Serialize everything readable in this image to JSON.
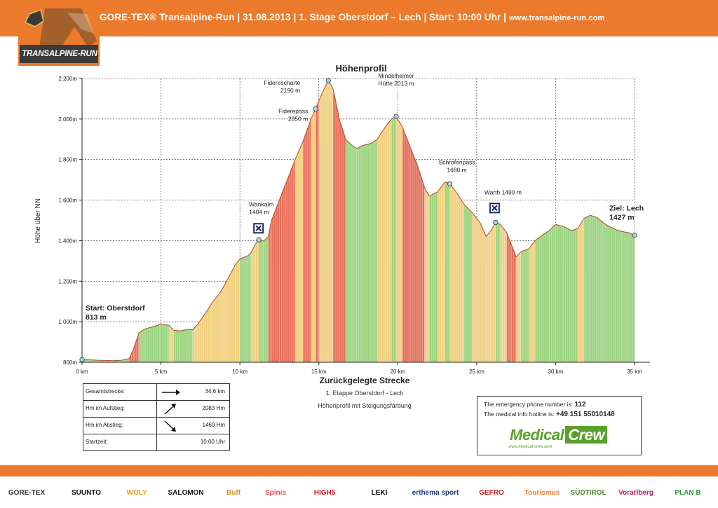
{
  "header": {
    "title": "GORE-TEX® Transalpine-Run | 31.08.2013 | 1. Stage Oberstdorf – Lech | Start: 10:00 Uhr | ",
    "url": "www.transalpine-run.com"
  },
  "logo": {
    "text": "TRANSALPINE-RUN",
    "badge": "GORE-TEX"
  },
  "chart_data": {
    "type": "area",
    "title": "Höhenprofil",
    "xlabel": "Zurückgelegte Strecke",
    "ylabel": "Höhe über NN",
    "xlim": [
      0,
      35
    ],
    "ylim": [
      800,
      2200
    ],
    "xticks": [
      0,
      5,
      10,
      15,
      20,
      25,
      30,
      35
    ],
    "xtick_labels": [
      "0 km",
      "5 km",
      "10 km",
      "15 km",
      "20 km",
      "25 km",
      "30 km",
      "35 km"
    ],
    "yticks": [
      800,
      1000,
      1200,
      1400,
      1600,
      1800,
      2000,
      2200
    ],
    "ytick_labels": [
      "800m",
      "1.000m",
      "1.200m",
      "1.400m",
      "1.600m",
      "1.800m",
      "2.000m",
      "2.200m"
    ],
    "grid": true,
    "fill_colors": {
      "steep": "#e8705a",
      "moderate": "#f0d080",
      "flat": "#9cd480"
    },
    "profile": [
      [
        0.0,
        813
      ],
      [
        0.5,
        812
      ],
      [
        1.0,
        810
      ],
      [
        1.5,
        809
      ],
      [
        2.0,
        808
      ],
      [
        2.5,
        810
      ],
      [
        3.0,
        818
      ],
      [
        3.3,
        875
      ],
      [
        3.6,
        945
      ],
      [
        4.0,
        965
      ],
      [
        4.5,
        975
      ],
      [
        5.0,
        988
      ],
      [
        5.5,
        982
      ],
      [
        5.8,
        958
      ],
      [
        6.2,
        955
      ],
      [
        6.7,
        962
      ],
      [
        7.0,
        960
      ],
      [
        7.3,
        985
      ],
      [
        7.8,
        1040
      ],
      [
        8.3,
        1100
      ],
      [
        8.8,
        1150
      ],
      [
        9.3,
        1220
      ],
      [
        9.7,
        1280
      ],
      [
        10.0,
        1310
      ],
      [
        10.5,
        1325
      ],
      [
        10.7,
        1340
      ],
      [
        11.0,
        1385
      ],
      [
        11.2,
        1404
      ],
      [
        11.5,
        1398
      ],
      [
        11.8,
        1420
      ],
      [
        12.0,
        1500
      ],
      [
        12.5,
        1600
      ],
      [
        13.0,
        1700
      ],
      [
        13.5,
        1800
      ],
      [
        14.0,
        1890
      ],
      [
        14.5,
        2000
      ],
      [
        14.8,
        2050
      ],
      [
        15.0,
        2090
      ],
      [
        15.4,
        2160
      ],
      [
        15.6,
        2190
      ],
      [
        15.9,
        2150
      ],
      [
        16.3,
        2000
      ],
      [
        16.7,
        1900
      ],
      [
        17.1,
        1870
      ],
      [
        17.4,
        1855
      ],
      [
        17.8,
        1870
      ],
      [
        18.3,
        1880
      ],
      [
        18.7,
        1900
      ],
      [
        19.2,
        1960
      ],
      [
        19.6,
        2000
      ],
      [
        19.9,
        2013
      ],
      [
        20.3,
        1960
      ],
      [
        20.8,
        1860
      ],
      [
        21.3,
        1760
      ],
      [
        21.7,
        1660
      ],
      [
        22.0,
        1620
      ],
      [
        22.5,
        1640
      ],
      [
        23.0,
        1690
      ],
      [
        23.3,
        1680
      ],
      [
        23.7,
        1640
      ],
      [
        24.2,
        1580
      ],
      [
        24.7,
        1540
      ],
      [
        25.2,
        1490
      ],
      [
        25.6,
        1420
      ],
      [
        25.9,
        1450
      ],
      [
        26.2,
        1490
      ],
      [
        26.5,
        1480
      ],
      [
        26.9,
        1440
      ],
      [
        27.2,
        1380
      ],
      [
        27.5,
        1320
      ],
      [
        27.8,
        1345
      ],
      [
        28.3,
        1360
      ],
      [
        28.7,
        1400
      ],
      [
        29.2,
        1430
      ],
      [
        29.6,
        1450
      ],
      [
        30.0,
        1480
      ],
      [
        30.5,
        1470
      ],
      [
        31.0,
        1450
      ],
      [
        31.4,
        1460
      ],
      [
        31.8,
        1510
      ],
      [
        32.2,
        1525
      ],
      [
        32.6,
        1515
      ],
      [
        33.0,
        1490
      ],
      [
        33.4,
        1470
      ],
      [
        33.8,
        1455
      ],
      [
        34.2,
        1445
      ],
      [
        34.6,
        1440
      ],
      [
        35.0,
        1427
      ]
    ],
    "annotations": [
      {
        "label": "Start: Oberstdorf",
        "label2": "813 m",
        "x": 0.0,
        "y": 813,
        "bold": true
      },
      {
        "label": "Wankalm",
        "label2": "1404 m",
        "x": 11.2,
        "y": 1404,
        "hut": true
      },
      {
        "label": "Fiderescharte",
        "label2": "2190 m",
        "x": 15.6,
        "y": 2190
      },
      {
        "label": "Fiderepass",
        "label2": "2050 m",
        "x": 14.8,
        "y": 2050
      },
      {
        "label": "Mindelheimer",
        "label2": "Hütte 2013 m",
        "x": 19.9,
        "y": 2013
      },
      {
        "label": "Schrofenpass",
        "label2": "1680 m",
        "x": 23.3,
        "y": 1680
      },
      {
        "label": "Warth 1490 m",
        "label2": "",
        "x": 26.2,
        "y": 1490,
        "hut": true
      },
      {
        "label": "Ziel: Lech",
        "label2": "1427 m",
        "x": 35.0,
        "y": 1427,
        "bold": true
      }
    ]
  },
  "stage": {
    "line1": "1. Etappe Oberstdorf - Lech",
    "line2": "Höhenprofil mit Steigungsfärbung"
  },
  "stats": [
    {
      "label": "Gesamtstrecke:",
      "value": "34,6 km",
      "icon": "arrow-right-icon"
    },
    {
      "label": "Hm im Aufstieg:",
      "value": "2083 Hm",
      "icon": "arrow-up-right-icon"
    },
    {
      "label": "Hm im Abstieg:",
      "value": "1469 Hm",
      "icon": "arrow-down-right-icon"
    },
    {
      "label": "Startzeit:",
      "value": "10:00 Uhr",
      "icon": ""
    }
  ],
  "medical": {
    "line1_prefix": "The emergency phone number is: ",
    "line1_number": "112",
    "line2_prefix": "The medical info hotline is: ",
    "line2_number": "+49 151 55010148",
    "logo_word1": "Medical",
    "logo_word2": "Crew",
    "website": "www.medical-crew.com"
  },
  "sponsors": [
    {
      "name": "GORE-TEX",
      "color": "#333333"
    },
    {
      "name": "SUUNTO",
      "color": "#111111"
    },
    {
      "name": "WOLY",
      "color": "#f0a020"
    },
    {
      "name": "SALOMON",
      "color": "#111111"
    },
    {
      "name": "Buff",
      "color": "#e09020"
    },
    {
      "name": "Spinis",
      "color": "#e05060"
    },
    {
      "name": "HIGH5",
      "color": "#d02020"
    },
    {
      "name": "LEKI",
      "color": "#111111"
    },
    {
      "name": "erthema sport",
      "color": "#1a3a80"
    },
    {
      "name": "GEFRO",
      "color": "#c02020"
    },
    {
      "name": "Tourismus",
      "color": "#e88030"
    },
    {
      "name": "SÜDTIROL",
      "color": "#4a8a30"
    },
    {
      "name": "Vorarlberg",
      "color": "#c02060"
    },
    {
      "name": "PLAN B",
      "color": "#2a9a40"
    }
  ]
}
